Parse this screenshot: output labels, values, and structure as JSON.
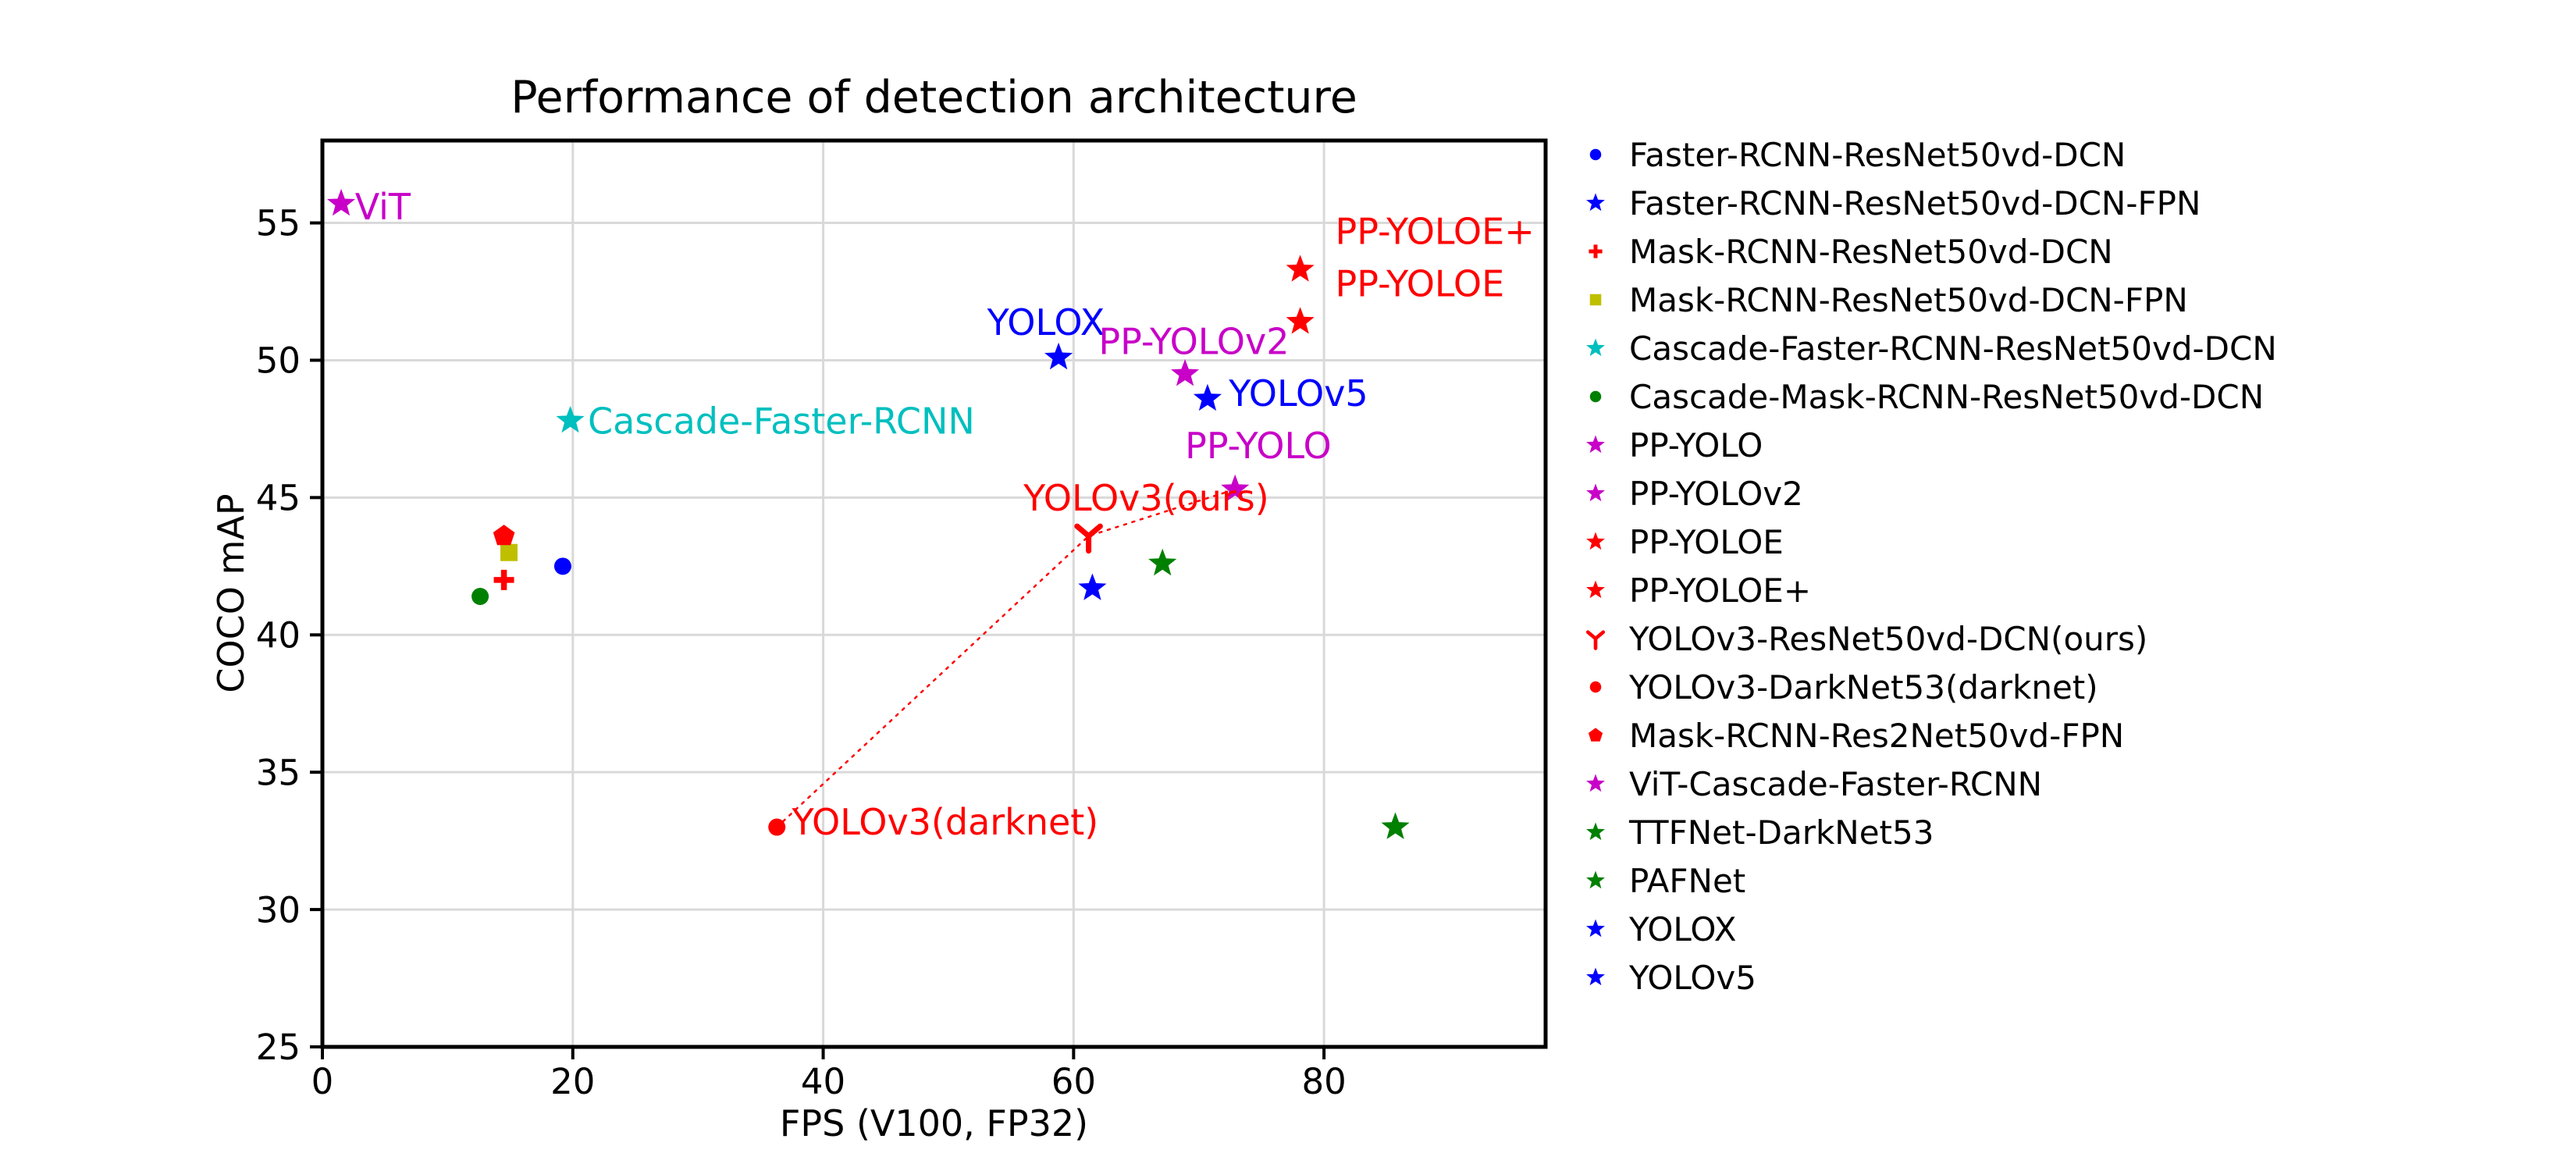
{
  "chart_data": {
    "type": "scatter",
    "title": "Performance of detection architecture",
    "xlabel": "FPS (V100, FP32)",
    "ylabel": "COCO mAP",
    "xlim": [
      0,
      97.7
    ],
    "ylim": [
      25,
      58
    ],
    "xticks": [
      0,
      20,
      40,
      60,
      80
    ],
    "yticks": [
      25,
      30,
      35,
      40,
      45,
      50,
      55
    ],
    "grid": true,
    "grid_color": "#d9d9d9",
    "axis_color": "#000000",
    "legend_position": "right-outside",
    "series": [
      {
        "name": "Faster-RCNN-ResNet50vd-DCN",
        "marker": "circle",
        "color": "#0000ff",
        "x": 19.2,
        "y": 42.5
      },
      {
        "name": "Faster-RCNN-ResNet50vd-DCN-FPN",
        "marker": "star",
        "color": "#0000ff",
        "x": 61.5,
        "y": 41.7
      },
      {
        "name": "Mask-RCNN-ResNet50vd-DCN",
        "marker": "plus",
        "color": "#ff0000",
        "x": 14.5,
        "y": 42.0
      },
      {
        "name": "Mask-RCNN-ResNet50vd-DCN-FPN",
        "marker": "square",
        "color": "#bfbf00",
        "x": 14.9,
        "y": 43.0
      },
      {
        "name": "Cascade-Faster-RCNN-ResNet50vd-DCN",
        "marker": "star",
        "color": "#00bfbf",
        "x": 19.8,
        "y": 47.8
      },
      {
        "name": "Cascade-Mask-RCNN-ResNet50vd-DCN",
        "marker": "circle",
        "color": "#008000",
        "x": 12.6,
        "y": 41.4
      },
      {
        "name": "PP-YOLO",
        "marker": "star",
        "color": "#c800c8",
        "x": 72.9,
        "y": 45.3
      },
      {
        "name": "PP-YOLOv2",
        "marker": "star",
        "color": "#c800c8",
        "x": 68.9,
        "y": 49.5
      },
      {
        "name": "PP-YOLOE",
        "marker": "star",
        "color": "#ff0000",
        "x": 78.1,
        "y": 51.4
      },
      {
        "name": "PP-YOLOE+",
        "marker": "star",
        "color": "#ff0000",
        "x": 78.1,
        "y": 53.3
      },
      {
        "name": "YOLOv3-ResNet50vd-DCN(ours)",
        "marker": "tri-down",
        "color": "#ff0000",
        "x": 61.2,
        "y": 43.6
      },
      {
        "name": "YOLOv3-DarkNet53(darknet)",
        "marker": "circle",
        "color": "#ff0000",
        "x": 36.3,
        "y": 33.0
      },
      {
        "name": "Mask-RCNN-Res2Net50vd-FPN",
        "marker": "pentagon",
        "color": "#ff0000",
        "x": 14.5,
        "y": 43.6
      },
      {
        "name": "ViT-Cascade-Faster-RCNN",
        "marker": "star",
        "color": "#c800c8",
        "x": 1.5,
        "y": 55.7
      },
      {
        "name": "TTFNet-DarkNet53",
        "marker": "star",
        "color": "#008000",
        "x": 85.7,
        "y": 33.0
      },
      {
        "name": "PAFNet",
        "marker": "star",
        "color": "#008000",
        "x": 67.1,
        "y": 42.6
      },
      {
        "name": "YOLOX",
        "marker": "star",
        "color": "#0000ff",
        "x": 58.8,
        "y": 50.1
      },
      {
        "name": "YOLOv5",
        "marker": "star",
        "color": "#0000ff",
        "x": 70.7,
        "y": 48.6
      }
    ],
    "trend_line": {
      "color": "#ff0000",
      "style": "dotted",
      "points": [
        [
          36.3,
          33.0
        ],
        [
          61.2,
          43.6
        ],
        [
          72.9,
          45.3
        ]
      ]
    },
    "annotations": [
      {
        "text": "ViT",
        "x": 2.6,
        "y": 55.6,
        "color": "#c800c8"
      },
      {
        "text": "Cascade-Faster-RCNN",
        "x": 21.2,
        "y": 47.8,
        "color": "#00bfbf"
      },
      {
        "text": "YOLOX",
        "x": 53.1,
        "y": 51.4,
        "color": "#0000ff"
      },
      {
        "text": "PP-YOLOv2",
        "x": 62.0,
        "y": 50.7,
        "color": "#c800c8"
      },
      {
        "text": "PP-YOLOE+",
        "x": 80.9,
        "y": 54.7,
        "color": "#ff0000"
      },
      {
        "text": "PP-YOLOE",
        "x": 80.9,
        "y": 52.8,
        "color": "#ff0000"
      },
      {
        "text": "YOLOv5",
        "x": 72.4,
        "y": 48.8,
        "color": "#0000ff"
      },
      {
        "text": "PP-YOLO",
        "x": 68.9,
        "y": 46.9,
        "color": "#c800c8"
      },
      {
        "text": "YOLOv3(ours)",
        "x": 56.0,
        "y": 45.0,
        "color": "#ff0000"
      },
      {
        "text": "YOLOv3(darknet)",
        "x": 37.5,
        "y": 33.2,
        "color": "#ff0000"
      }
    ]
  }
}
